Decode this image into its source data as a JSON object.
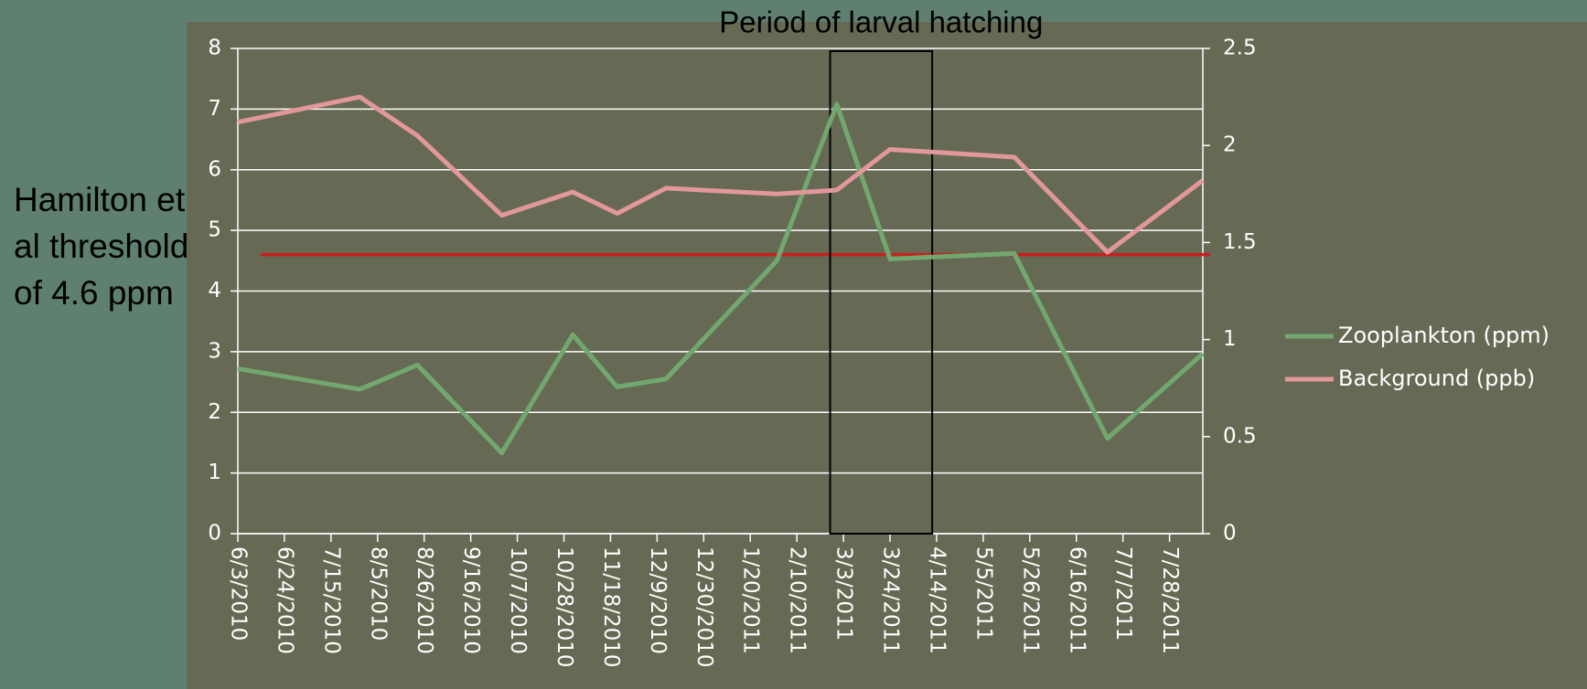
{
  "chart_data": {
    "type": "line",
    "x": [
      "6/3/2010",
      "7/28/2010",
      "8/23/2010",
      "9/30/2010",
      "11/1/2010",
      "11/21/2010",
      "12/13/2010",
      "2/1/2011",
      "2/28/2011",
      "3/24/2011",
      "5/19/2011",
      "6/30/2011",
      "8/12/2011"
    ],
    "series": [
      {
        "name": "Zooplankton (ppm)",
        "color": "#72a86f",
        "axis": "y",
        "values": [
          2.72,
          2.38,
          2.78,
          1.33,
          3.28,
          2.42,
          2.55,
          4.5,
          7.08,
          4.53,
          4.62,
          1.57,
          2.97
        ]
      },
      {
        "name": "Background (ppb)",
        "color": "#e2979b",
        "axis": "y2",
        "values": [
          2.12,
          2.25,
          2.05,
          1.64,
          1.76,
          1.65,
          1.78,
          1.75,
          1.77,
          1.98,
          1.94,
          1.45,
          1.82
        ]
      }
    ],
    "xlim": [
      "6/3/2010",
      "8/12/2011"
    ],
    "xticks": [
      "6/3/2010",
      "6/24/2010",
      "7/15/2010",
      "8/5/2010",
      "8/26/2010",
      "9/16/2010",
      "10/7/2010",
      "10/28/2010",
      "11/18/2010",
      "12/9/2010",
      "12/30/2010",
      "1/20/2011",
      "2/10/2011",
      "3/3/2011",
      "3/24/2011",
      "4/14/2011",
      "5/5/2011",
      "5/26/2011",
      "6/16/2011",
      "7/7/2011",
      "7/28/2011"
    ],
    "ylim": [
      0,
      8
    ],
    "yticks": [
      0,
      1,
      2,
      3,
      4,
      5,
      6,
      7,
      8
    ],
    "y2lim": [
      0,
      2.5
    ],
    "y2ticks": [
      0,
      0.5,
      1,
      1.5,
      2,
      2.5
    ],
    "grid": true,
    "legend": "right",
    "threshold": {
      "value": 4.6,
      "color": "#c8201c",
      "label": [
        "Hamilton et",
        "al threshold",
        "of 4.6 ppm"
      ]
    },
    "period": {
      "label": "Period of larval hatching",
      "start": "2/25/2011",
      "end": "4/12/2011"
    }
  }
}
